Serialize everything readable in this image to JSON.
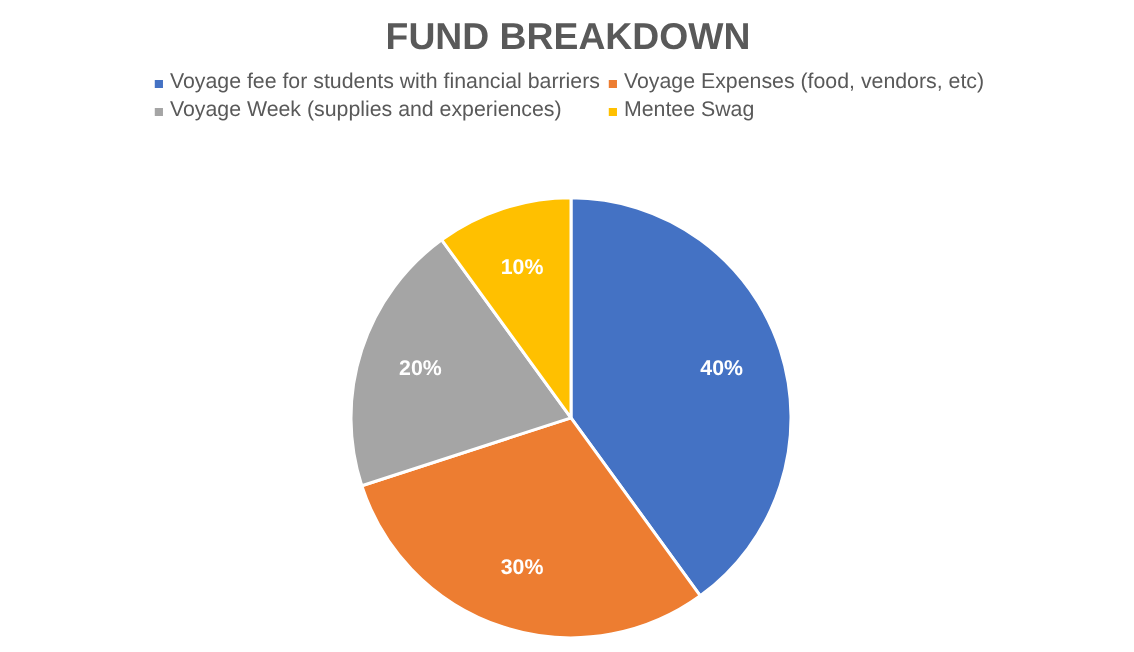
{
  "chart_data": {
    "type": "pie",
    "title": "FUND BREAKDOWN",
    "categories": [
      "Voyage fee for students with financial barriers",
      "Voyage Expenses (food, vendors, etc)",
      "Voyage Week (supplies and experiences)",
      "Mentee Swag"
    ],
    "values": [
      40,
      30,
      20,
      10
    ],
    "colors": [
      "#4472c4",
      "#ed7d31",
      "#a5a5a5",
      "#ffc000"
    ],
    "value_labels": [
      "40%",
      "30%",
      "20%",
      "10%"
    ],
    "legend": "top"
  }
}
